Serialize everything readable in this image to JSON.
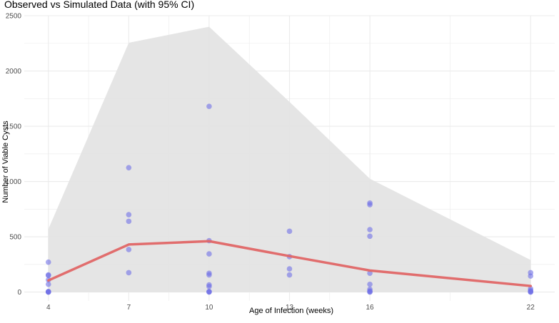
{
  "chart_data": {
    "type": "scatter",
    "title": "Observed vs Simulated Data (with 95% CI)",
    "xlabel": "Age of Infection (weeks)",
    "ylabel": "Number of Viable Cysts",
    "xlim": [
      3.1,
      22.9
    ],
    "ylim": [
      -80,
      2500
    ],
    "x_ticks": [
      4,
      7,
      10,
      13,
      16,
      22
    ],
    "y_ticks": [
      0,
      500,
      1000,
      1500,
      2000,
      2500
    ],
    "grid": true,
    "legend": "none",
    "colors": {
      "observed_points": "#6f6fe6",
      "simulated_line": "#e06666",
      "ci_band": "#e3e3e3",
      "grid": "#ebebeb"
    },
    "ci_band": {
      "x": [
        4,
        7,
        10,
        13,
        16,
        22
      ],
      "lower": [
        0,
        0,
        0,
        0,
        0,
        0
      ],
      "upper": [
        570,
        2255,
        2400,
        1720,
        1025,
        290
      ]
    },
    "simulated": {
      "x": [
        4,
        7,
        10,
        13,
        16,
        22
      ],
      "y": [
        105,
        430,
        460,
        325,
        195,
        55
      ]
    },
    "observed": {
      "x": [
        4,
        4,
        4,
        4,
        4,
        4,
        4,
        4,
        4,
        7,
        7,
        7,
        7,
        7,
        10,
        10,
        10,
        10,
        10,
        10,
        10,
        10,
        10,
        10,
        13,
        13,
        13,
        13,
        16,
        16,
        16,
        16,
        16,
        16,
        16,
        16,
        16,
        16,
        22,
        22,
        22,
        22,
        22,
        22,
        22
      ],
      "y": [
        270,
        155,
        150,
        110,
        70,
        5,
        0,
        0,
        2,
        1125,
        700,
        640,
        385,
        175,
        1680,
        465,
        345,
        170,
        155,
        65,
        50,
        5,
        0,
        2,
        550,
        320,
        210,
        155,
        805,
        790,
        565,
        505,
        170,
        70,
        25,
        10,
        0,
        3,
        175,
        145,
        30,
        15,
        5,
        0,
        2
      ]
    }
  }
}
